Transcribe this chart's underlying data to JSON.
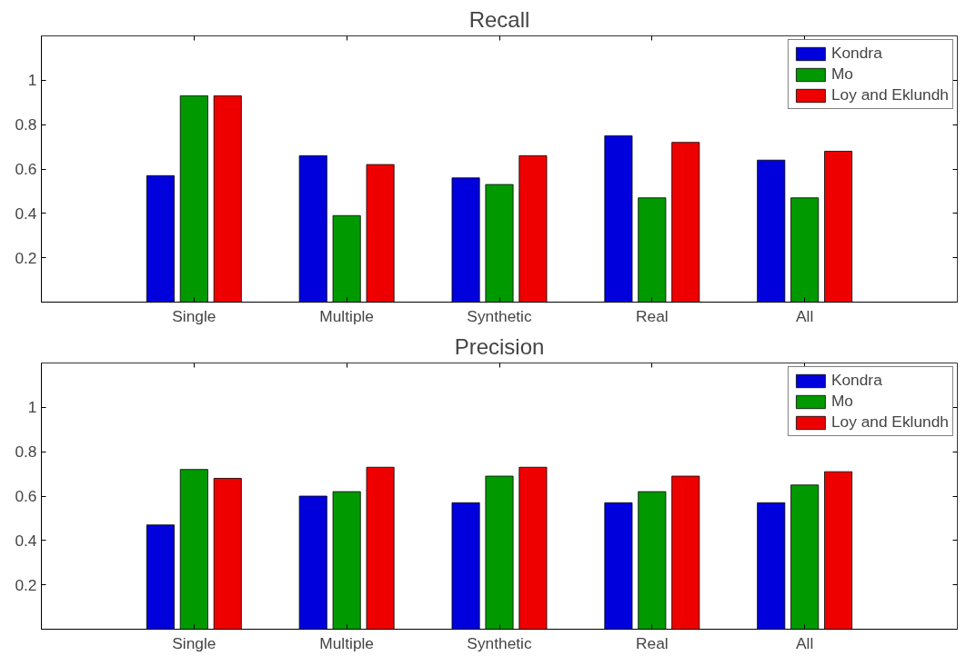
{
  "chart_data": [
    {
      "type": "bar",
      "title": "Recall",
      "categories": [
        "Single",
        "Multiple",
        "Synthetic",
        "Real",
        "All"
      ],
      "ylim": [
        0,
        1.2
      ],
      "yticks": [
        0.2,
        0.4,
        0.6,
        0.8,
        1
      ],
      "grid": false,
      "legend": "top right",
      "series": [
        {
          "name": "Kondra",
          "color": "#0000dd",
          "values": [
            0.57,
            0.66,
            0.56,
            0.75,
            0.64
          ]
        },
        {
          "name": "Mo",
          "color": "#009900",
          "values": [
            0.93,
            0.39,
            0.53,
            0.47,
            0.47
          ]
        },
        {
          "name": "Loy and Eklundh",
          "color": "#ee0000",
          "values": [
            0.93,
            0.62,
            0.66,
            0.72,
            0.68
          ]
        }
      ]
    },
    {
      "type": "bar",
      "title": "Precision",
      "categories": [
        "Single",
        "Multiple",
        "Synthetic",
        "Real",
        "All"
      ],
      "ylim": [
        0,
        1.2
      ],
      "yticks": [
        0.2,
        0.4,
        0.6,
        0.8,
        1
      ],
      "grid": false,
      "legend": "top right",
      "series": [
        {
          "name": "Kondra",
          "color": "#0000dd",
          "values": [
            0.47,
            0.6,
            0.57,
            0.57,
            0.57
          ]
        },
        {
          "name": "Mo",
          "color": "#009900",
          "values": [
            0.72,
            0.62,
            0.69,
            0.62,
            0.65
          ]
        },
        {
          "name": "Loy and Eklundh",
          "color": "#ee0000",
          "values": [
            0.68,
            0.73,
            0.73,
            0.69,
            0.71
          ]
        }
      ]
    }
  ]
}
